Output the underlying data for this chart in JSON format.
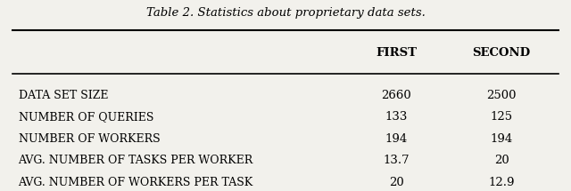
{
  "title": "Table 2. Statistics about proprietary data sets.",
  "col_headers": [
    "FIRST",
    "SECOND"
  ],
  "rows": [
    [
      "DATA SET SIZE",
      "2660",
      "2500"
    ],
    [
      "NUMBER OF QUERIES",
      "133",
      "125"
    ],
    [
      "NUMBER OF WORKERS",
      "194",
      "194"
    ],
    [
      "AVG. NUMBER OF TASKS PER WORKER",
      "13.7",
      "20"
    ],
    [
      "AVG. NUMBER OF WORKERS PER TASK",
      "20",
      "12.9"
    ]
  ],
  "bg_color": "#f2f1ec",
  "figsize": [
    6.4,
    2.15
  ],
  "dpi": 100,
  "title_text": "Table 2. Statistics about proprietary data sets."
}
